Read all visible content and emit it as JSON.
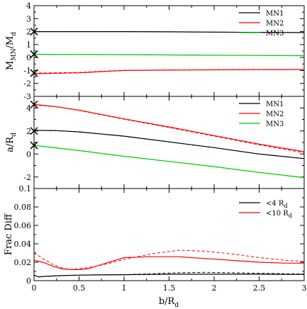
{
  "chart_data": [
    {
      "type": "line",
      "ylabel": "M_MN/M_d",
      "xlim": [
        0,
        3
      ],
      "ylim": [
        -3,
        4
      ],
      "yticks": [
        "-3",
        "-2",
        "-1",
        "0",
        "1",
        "2",
        "3",
        "4"
      ],
      "legend_position": "top-right",
      "series": [
        {
          "name": "MN1",
          "color": "#000000",
          "x": [
            0,
            0.5,
            1,
            1.5,
            2,
            2.5,
            3
          ],
          "y": [
            2.0,
            2.0,
            2.0,
            1.98,
            1.96,
            1.94,
            1.92
          ],
          "ref_y": [
            2.0,
            2.0,
            2.0,
            1.98,
            1.96,
            1.94,
            1.92
          ]
        },
        {
          "name": "MN2",
          "color": "#ff0000",
          "x": [
            0,
            0.5,
            1,
            1.5,
            2,
            2.5,
            3
          ],
          "y": [
            -1.25,
            -1.18,
            -1.0,
            -0.97,
            -0.95,
            -0.94,
            -0.93
          ],
          "ref_y": [
            -1.2,
            -1.15,
            -0.98,
            -0.96,
            -0.94,
            -0.93,
            -0.92
          ]
        },
        {
          "name": "MN3",
          "color": "#00cc00",
          "x": [
            0,
            0.5,
            1,
            1.5,
            2,
            2.5,
            3
          ],
          "y": [
            0.25,
            0.24,
            0.22,
            0.2,
            0.18,
            0.16,
            0.14
          ],
          "ref_y": [
            0.25,
            0.24,
            0.22,
            0.2,
            0.18,
            0.16,
            0.14
          ]
        }
      ],
      "markers": [
        {
          "x": 0,
          "y": 2.0
        },
        {
          "x": 0,
          "y": 0.25
        },
        {
          "x": 0,
          "y": -1.2
        }
      ]
    },
    {
      "type": "line",
      "ylabel": "a/R_d",
      "xlim": [
        0,
        3
      ],
      "ylim": [
        -3,
        5
      ],
      "yticks": [
        "-2",
        "0",
        "2",
        "4"
      ],
      "legend_position": "top-right",
      "series": [
        {
          "name": "MN1",
          "color": "#000000",
          "x": [
            0,
            0.25,
            0.5,
            1,
            1.5,
            2,
            2.5,
            3
          ],
          "y": [
            2.05,
            2.03,
            1.92,
            1.55,
            1.05,
            0.55,
            0.0,
            -0.4
          ],
          "ref_y": [
            2.05,
            2.03,
            1.92,
            1.55,
            1.05,
            0.55,
            0.0,
            -0.4
          ]
        },
        {
          "name": "MN2",
          "color": "#ff0000",
          "x": [
            0,
            0.25,
            0.5,
            1,
            1.5,
            2,
            2.5,
            3
          ],
          "y": [
            4.3,
            4.1,
            3.8,
            3.05,
            2.35,
            1.6,
            0.85,
            0.2
          ],
          "ref_y": [
            4.25,
            4.1,
            3.78,
            3.02,
            2.3,
            1.55,
            0.8,
            0.1
          ]
        },
        {
          "name": "MN3",
          "color": "#00cc00",
          "x": [
            0,
            0.5,
            1,
            1.5,
            2,
            2.5,
            3
          ],
          "y": [
            0.75,
            0.3,
            -0.2,
            -0.65,
            -1.1,
            -1.6,
            -2.05
          ],
          "ref_y": [
            0.75,
            0.3,
            -0.2,
            -0.65,
            -1.1,
            -1.6,
            -2.05
          ]
        }
      ],
      "markers": [
        {
          "x": 0,
          "y": 4.3
        },
        {
          "x": 0,
          "y": 2.0
        },
        {
          "x": 0,
          "y": 0.75
        }
      ]
    },
    {
      "type": "line",
      "xlabel": "b/R_d",
      "ylabel": "Frac Diff",
      "xlim": [
        0,
        3
      ],
      "ylim": [
        0,
        0.1
      ],
      "xticks": [
        "0",
        "0.5",
        "1",
        "1.5",
        "2",
        "2.5",
        "3"
      ],
      "yticks": [
        "0",
        "0.02",
        "0.04",
        "0.06",
        "0.08",
        "0.1"
      ],
      "legend_position": "top-right",
      "series": [
        {
          "name": "<4 R_d",
          "color": "#000000",
          "x": [
            0,
            0.05,
            0.1,
            0.2,
            0.3,
            0.5,
            0.7,
            1.0,
            1.3,
            1.6,
            1.9,
            2.2,
            2.5,
            2.8,
            3.0
          ],
          "y": [
            0.006,
            0.004,
            0.0045,
            0.005,
            0.0055,
            0.006,
            0.0062,
            0.0065,
            0.0068,
            0.007,
            0.007,
            0.007,
            0.007,
            0.0068,
            0.0068
          ],
          "dashed_y": [
            0.006,
            0.004,
            0.0045,
            0.005,
            0.0055,
            0.006,
            0.0062,
            0.0065,
            0.0075,
            0.0085,
            0.009,
            0.0085,
            0.008,
            0.0075,
            0.0072
          ]
        },
        {
          "name": "<10 R_d",
          "color": "#ff0000",
          "x": [
            0,
            0.1,
            0.2,
            0.3,
            0.4,
            0.5,
            0.6,
            0.8,
            1.0,
            1.3,
            1.6,
            1.9,
            2.2,
            2.5,
            2.8,
            3.0
          ],
          "y": [
            0.022,
            0.02,
            0.016,
            0.013,
            0.012,
            0.012,
            0.013,
            0.019,
            0.025,
            0.026,
            0.026,
            0.024,
            0.022,
            0.02,
            0.019,
            0.019
          ],
          "dashed_y": [
            0.03,
            0.024,
            0.018,
            0.014,
            0.012,
            0.013,
            0.014,
            0.018,
            0.023,
            0.029,
            0.033,
            0.032,
            0.029,
            0.025,
            0.022,
            0.021
          ]
        }
      ]
    }
  ]
}
